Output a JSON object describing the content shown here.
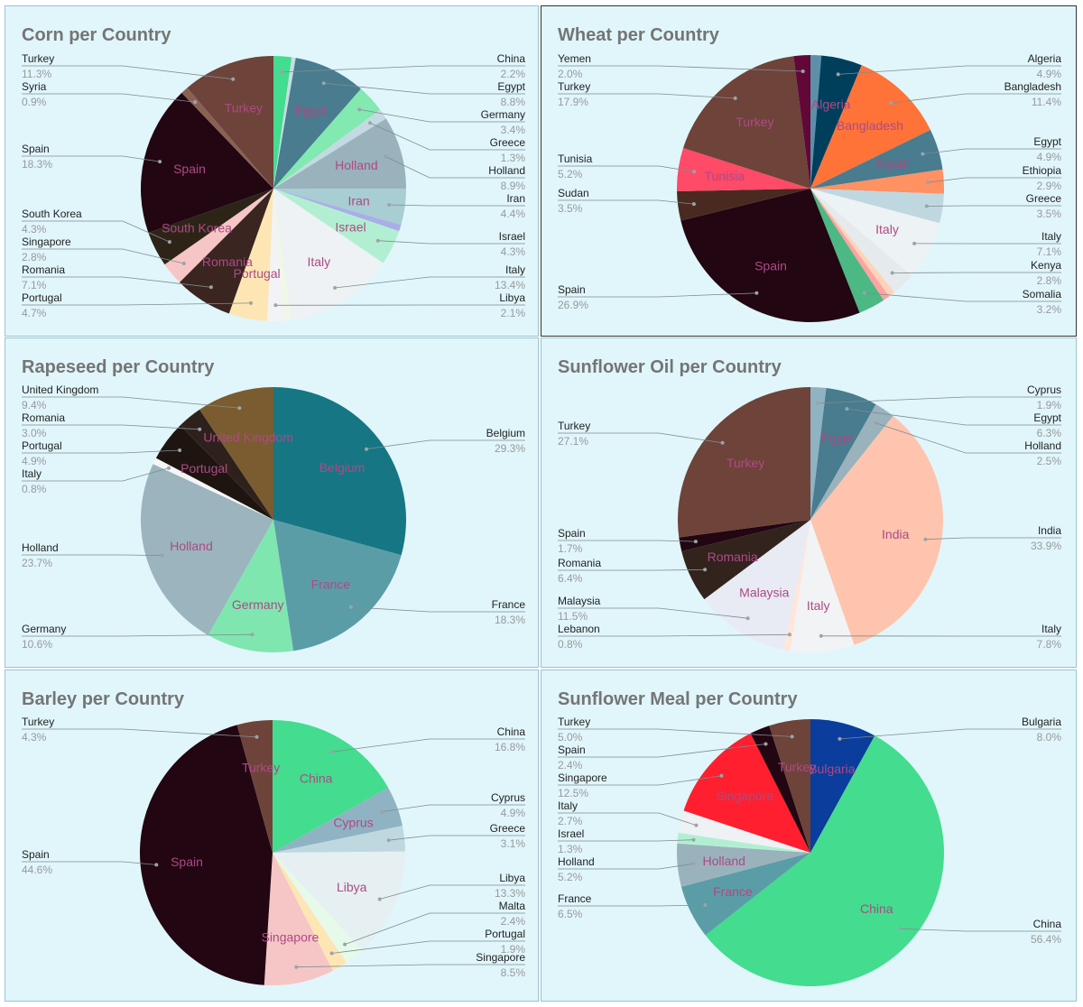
{
  "chart_data": [
    {
      "type": "pie",
      "title": "Corn per Country",
      "slices": [
        {
          "label": "China",
          "value": 2.2,
          "color": "#44dc8e"
        },
        {
          "label": "",
          "value": 0.5,
          "color": "#c6dde4"
        },
        {
          "label": "Egypt",
          "value": 8.8,
          "color": "#487c8e"
        },
        {
          "label": "Germany",
          "value": 3.4,
          "color": "#82e9b1"
        },
        {
          "label": "Greece",
          "value": 1.3,
          "color": "#c4dae2"
        },
        {
          "label": "Holland",
          "value": 8.9,
          "color": "#99b2bc"
        },
        {
          "label": "Iran",
          "value": 4.4,
          "color": "#a8cdd2"
        },
        {
          "label": "",
          "value": 0.8,
          "color": "#a9aee8"
        },
        {
          "label": "Israel",
          "value": 4.3,
          "color": "#b2efd2"
        },
        {
          "label": "Italy",
          "value": 13.4,
          "color": "#eef2f4"
        },
        {
          "label": "",
          "value": 0.8,
          "color": "#eef8e4"
        },
        {
          "label": "Libya",
          "value": 2.1,
          "color": "#f2f3f5"
        },
        {
          "label": "Portugal",
          "value": 4.7,
          "color": "#fde6b3"
        },
        {
          "label": "Romania",
          "value": 7.1,
          "color": "#3a2520"
        },
        {
          "label": "Singapore",
          "value": 2.8,
          "color": "#f6c6c6"
        },
        {
          "label": "South Korea",
          "value": 4.3,
          "color": "#2d2417"
        },
        {
          "label": "Spain",
          "value": 18.3,
          "color": "#220612"
        },
        {
          "label": "Syria",
          "value": 0.9,
          "color": "#8a6055"
        },
        {
          "label": "Turkey",
          "value": 11.3,
          "color": "#6e433a"
        }
      ],
      "legend": [
        {
          "name": "China",
          "pct": "2.2%",
          "side": "right"
        },
        {
          "name": "Egypt",
          "pct": "8.8%",
          "side": "right"
        },
        {
          "name": "Germany",
          "pct": "3.4%",
          "side": "right"
        },
        {
          "name": "Greece",
          "pct": "1.3%",
          "side": "right"
        },
        {
          "name": "Holland",
          "pct": "8.9%",
          "side": "right"
        },
        {
          "name": "Iran",
          "pct": "4.4%",
          "side": "right"
        },
        {
          "name": "Israel",
          "pct": "4.3%",
          "side": "right"
        },
        {
          "name": "Italy",
          "pct": "13.4%",
          "side": "right"
        },
        {
          "name": "Libya",
          "pct": "2.1%",
          "side": "right"
        },
        {
          "name": "Turkey",
          "pct": "11.3%",
          "side": "left"
        },
        {
          "name": "Syria",
          "pct": "0.9%",
          "side": "left"
        },
        {
          "name": "Spain",
          "pct": "18.3%",
          "side": "left"
        },
        {
          "name": "South Korea",
          "pct": "4.3%",
          "side": "left"
        },
        {
          "name": "Singapore",
          "pct": "2.8%",
          "side": "left"
        },
        {
          "name": "Romania",
          "pct": "7.1%",
          "side": "left"
        },
        {
          "name": "Portugal",
          "pct": "4.7%",
          "side": "left"
        }
      ]
    },
    {
      "type": "pie",
      "title": "Wheat per Country",
      "slices": [
        {
          "label": "",
          "value": 1.3,
          "color": "#5c90a8"
        },
        {
          "label": "Algeria",
          "value": 4.9,
          "color": "#003f5c"
        },
        {
          "label": "Bangladesh",
          "value": 11.4,
          "color": "#ff7339"
        },
        {
          "label": "Egypt",
          "value": 4.9,
          "color": "#487c8e"
        },
        {
          "label": "Ethiopia",
          "value": 2.9,
          "color": "#ff9162"
        },
        {
          "label": "Greece",
          "value": 3.5,
          "color": "#bfd8e0"
        },
        {
          "label": "Italy",
          "value": 7.1,
          "color": "#edf2f4"
        },
        {
          "label": "Kenya",
          "value": 2.8,
          "color": "#e5eaed"
        },
        {
          "label": "",
          "value": 0.8,
          "color": "#ffd3b8"
        },
        {
          "label": "",
          "value": 0.8,
          "color": "#ffa2a2"
        },
        {
          "label": "Somalia",
          "value": 3.2,
          "color": "#4cb884"
        },
        {
          "label": "Spain",
          "value": 26.9,
          "color": "#220612"
        },
        {
          "label": "Sudan",
          "value": 3.5,
          "color": "#4a2a20"
        },
        {
          "label": "Tunisia",
          "value": 5.2,
          "color": "#ff4a68"
        },
        {
          "label": "Turkey",
          "value": 17.9,
          "color": "#6e433a"
        },
        {
          "label": "Yemen",
          "value": 2.0,
          "color": "#610839"
        }
      ],
      "legend": [
        {
          "name": "Algeria",
          "pct": "4.9%",
          "side": "right"
        },
        {
          "name": "Bangladesh",
          "pct": "11.4%",
          "side": "right"
        },
        {
          "name": "Egypt",
          "pct": "4.9%",
          "side": "right"
        },
        {
          "name": "Ethiopia",
          "pct": "2.9%",
          "side": "right"
        },
        {
          "name": "Greece",
          "pct": "3.5%",
          "side": "right"
        },
        {
          "name": "Italy",
          "pct": "7.1%",
          "side": "right"
        },
        {
          "name": "Kenya",
          "pct": "2.8%",
          "side": "right"
        },
        {
          "name": "Somalia",
          "pct": "3.2%",
          "side": "right"
        },
        {
          "name": "Yemen",
          "pct": "2.0%",
          "side": "left"
        },
        {
          "name": "Turkey",
          "pct": "17.9%",
          "side": "left"
        },
        {
          "name": "Tunisia",
          "pct": "5.2%",
          "side": "left"
        },
        {
          "name": "Sudan",
          "pct": "3.5%",
          "side": "left"
        },
        {
          "name": "Spain",
          "pct": "26.9%",
          "side": "left"
        }
      ]
    },
    {
      "type": "pie",
      "title": "Rapeseed per Country",
      "slices": [
        {
          "label": "Belgium",
          "value": 29.3,
          "color": "#167684"
        },
        {
          "label": "France",
          "value": 18.3,
          "color": "#5b9da6"
        },
        {
          "label": "Germany",
          "value": 10.6,
          "color": "#7fe6b0"
        },
        {
          "label": "Holland",
          "value": 23.7,
          "color": "#9bb4bd"
        },
        {
          "label": "Italy",
          "value": 0.8,
          "color": "#f5f5f5"
        },
        {
          "label": "Portugal",
          "value": 4.9,
          "color": "#1f1510"
        },
        {
          "label": "Romania",
          "value": 3.0,
          "color": "#2e211c"
        },
        {
          "label": "United Kingdom",
          "value": 9.4,
          "color": "#7a5c30"
        }
      ],
      "legend": [
        {
          "name": "Belgium",
          "pct": "29.3%",
          "side": "right"
        },
        {
          "name": "France",
          "pct": "18.3%",
          "side": "right"
        },
        {
          "name": "United Kingdom",
          "pct": "9.4%",
          "side": "left"
        },
        {
          "name": "Romania",
          "pct": "3.0%",
          "side": "left"
        },
        {
          "name": "Portugal",
          "pct": "4.9%",
          "side": "left"
        },
        {
          "name": "Italy",
          "pct": "0.8%",
          "side": "left"
        },
        {
          "name": "Holland",
          "pct": "23.7%",
          "side": "left"
        },
        {
          "name": "Germany",
          "pct": "10.6%",
          "side": "left"
        }
      ]
    },
    {
      "type": "pie",
      "title": "Sunflower Oil per Country",
      "slices": [
        {
          "label": "Cyprus",
          "value": 1.9,
          "color": "#8fb3c2"
        },
        {
          "label": "Egypt",
          "value": 6.3,
          "color": "#487c8e"
        },
        {
          "label": "Holland",
          "value": 2.5,
          "color": "#99b2bc"
        },
        {
          "label": "India",
          "value": 33.9,
          "color": "#ffc4ae"
        },
        {
          "label": "Italy",
          "value": 7.8,
          "color": "#f2f3f5"
        },
        {
          "label": "Lebanon",
          "value": 0.8,
          "color": "#ffe6d8"
        },
        {
          "label": "Malaysia",
          "value": 11.5,
          "color": "#e8ebf4"
        },
        {
          "label": "Romania",
          "value": 6.4,
          "color": "#33231d"
        },
        {
          "label": "Spain",
          "value": 1.7,
          "color": "#220612"
        },
        {
          "label": "Turkey",
          "value": 27.1,
          "color": "#6e433a"
        }
      ],
      "legend": [
        {
          "name": "Cyprus",
          "pct": "1.9%",
          "side": "right"
        },
        {
          "name": "Egypt",
          "pct": "6.3%",
          "side": "right"
        },
        {
          "name": "Holland",
          "pct": "2.5%",
          "side": "right"
        },
        {
          "name": "India",
          "pct": "33.9%",
          "side": "right"
        },
        {
          "name": "Italy",
          "pct": "7.8%",
          "side": "right"
        },
        {
          "name": "Turkey",
          "pct": "27.1%",
          "side": "left"
        },
        {
          "name": "Spain",
          "pct": "1.7%",
          "side": "left"
        },
        {
          "name": "Romania",
          "pct": "6.4%",
          "side": "left"
        },
        {
          "name": "Malaysia",
          "pct": "11.5%",
          "side": "left"
        },
        {
          "name": "Lebanon",
          "pct": "0.8%",
          "side": "left"
        }
      ]
    },
    {
      "type": "pie",
      "title": "Barley per Country",
      "slices": [
        {
          "label": "China",
          "value": 16.8,
          "color": "#44dc8e"
        },
        {
          "label": "Cyprus",
          "value": 4.9,
          "color": "#8fb3c2"
        },
        {
          "label": "Greece",
          "value": 3.1,
          "color": "#bfd8e0"
        },
        {
          "label": "Libya",
          "value": 13.3,
          "color": "#e6eff1"
        },
        {
          "label": "Malta",
          "value": 2.4,
          "color": "#e6fae9"
        },
        {
          "label": "Portugal",
          "value": 1.9,
          "color": "#fde6b3"
        },
        {
          "label": "Singapore",
          "value": 8.5,
          "color": "#f6c6c6"
        },
        {
          "label": "Spain",
          "value": 44.6,
          "color": "#220612"
        },
        {
          "label": "Turkey",
          "value": 4.3,
          "color": "#6e433a"
        }
      ],
      "legend": [
        {
          "name": "China",
          "pct": "16.8%",
          "side": "right"
        },
        {
          "name": "Cyprus",
          "pct": "4.9%",
          "side": "right"
        },
        {
          "name": "Greece",
          "pct": "3.1%",
          "side": "right"
        },
        {
          "name": "Libya",
          "pct": "13.3%",
          "side": "right"
        },
        {
          "name": "Malta",
          "pct": "2.4%",
          "side": "right"
        },
        {
          "name": "Portugal",
          "pct": "1.9%",
          "side": "right"
        },
        {
          "name": "Singapore",
          "pct": "8.5%",
          "side": "right"
        },
        {
          "name": "Turkey",
          "pct": "4.3%",
          "side": "left"
        },
        {
          "name": "Spain",
          "pct": "44.6%",
          "side": "left"
        }
      ]
    },
    {
      "type": "pie",
      "title": "Sunflower Meal per Country",
      "slices": [
        {
          "label": "Bulgaria",
          "value": 8.0,
          "color": "#0a3d9c"
        },
        {
          "label": "China",
          "value": 56.4,
          "color": "#44dc8e"
        },
        {
          "label": "France",
          "value": 6.5,
          "color": "#5b9da6"
        },
        {
          "label": "Holland",
          "value": 5.2,
          "color": "#99b2bc"
        },
        {
          "label": "Israel",
          "value": 1.3,
          "color": "#b2efd2"
        },
        {
          "label": "Italy",
          "value": 2.7,
          "color": "#eef2f4"
        },
        {
          "label": "Singapore",
          "value": 12.5,
          "color": "#ff1f2e"
        },
        {
          "label": "Spain",
          "value": 2.4,
          "color": "#220612"
        },
        {
          "label": "Turkey",
          "value": 5.0,
          "color": "#6e433a"
        }
      ],
      "legend": [
        {
          "name": "Bulgaria",
          "pct": "8.0%",
          "side": "right"
        },
        {
          "name": "China",
          "pct": "56.4%",
          "side": "right"
        },
        {
          "name": "Turkey",
          "pct": "5.0%",
          "side": "left"
        },
        {
          "name": "Spain",
          "pct": "2.4%",
          "side": "left"
        },
        {
          "name": "Singapore",
          "pct": "12.5%",
          "side": "left"
        },
        {
          "name": "Italy",
          "pct": "2.7%",
          "side": "left"
        },
        {
          "name": "Israel",
          "pct": "1.3%",
          "side": "left"
        },
        {
          "name": "Holland",
          "pct": "5.2%",
          "side": "left"
        },
        {
          "name": "France",
          "pct": "6.5%",
          "side": "left"
        }
      ]
    }
  ]
}
